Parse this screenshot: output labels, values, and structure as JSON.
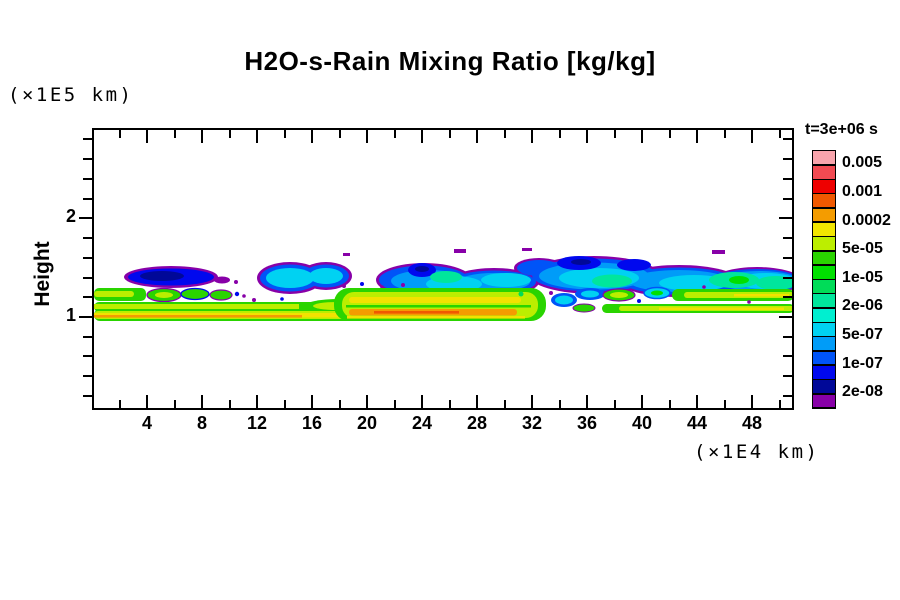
{
  "chart_data": {
    "type": "heatmap",
    "title": "H2O-s-Rain Mixing Ratio [kg/kg]",
    "time_annotation": "t=3e+06 s",
    "y_axis_label": "Height",
    "y_axis_unit": "(×1E5 km)",
    "x_axis_unit": "(×1E4 km)",
    "x_tick_labels": [
      4,
      8,
      12,
      16,
      20,
      24,
      28,
      32,
      36,
      40,
      44,
      48
    ],
    "x_minor_tick_step": 2,
    "x_range": [
      0.2,
      51
    ],
    "y_tick_labels": [
      2,
      1
    ],
    "y_minor_tick_step": 0.2,
    "y_range": [
      0.05,
      2.9
    ],
    "grid": false,
    "legend_position": "right-colorbar",
    "colorbar": {
      "n_cells": 18,
      "labels_top_to_bottom": [
        "0.005",
        "0.001",
        "0.0002",
        "5e-05",
        "1e-05",
        "2e-06",
        "5e-07",
        "1e-07",
        "2e-08"
      ],
      "implied_contour_levels": [
        "0.005",
        "0.002",
        "0.001",
        "0.0005",
        "0.0002",
        "0.0001",
        "5e-05",
        "2e-05",
        "1e-05",
        "5e-06",
        "2e-06",
        "1e-06",
        "5e-07",
        "2e-07",
        "1e-07",
        "5e-08",
        "2e-08"
      ],
      "colors_top_to_bottom": [
        "#F8A4AC",
        "#F24A52",
        "#EE0000",
        "#F05800",
        "#F49C00",
        "#F2E600",
        "#BCEE00",
        "#2AD400",
        "#00E000",
        "#00DC58",
        "#00E69C",
        "#00EFD0",
        "#00D2F2",
        "#009CF8",
        "#0054F8",
        "#0008EE",
        "#000898",
        "#8800A8"
      ]
    },
    "features": [
      {
        "name": "isolated upper clouds (west)",
        "height_x1e5km": [
          1.3,
          1.5
        ],
        "x_x1e4km": [
          2,
          19
        ],
        "magnitude_kg_kg": "dark-blue blob ~1e-07; twin cyan blobs ~5e-07 to 2e-06"
      },
      {
        "name": "upper cloud deck",
        "height_x1e5km": [
          1.3,
          1.6
        ],
        "x_x1e4km": [
          22,
          51
        ],
        "magnitude_kg_kg": "blue/cyan 1e-07 to 2e-06 with green-teal cores ~5e-06 and purple 2e-08 fringe"
      },
      {
        "name": "lower rain band west",
        "height_x1e5km": [
          0.95,
          1.25
        ],
        "x_x1e4km": [
          0,
          22
        ],
        "magnitude_kg_kg": "green 1e-05 to 5e-05 with yellow/orange streak up to 0.0002"
      },
      {
        "name": "lower rain band central (most intense)",
        "height_x1e5km": [
          0.95,
          1.2
        ],
        "x_x1e4km": [
          17,
          33
        ],
        "magnitude_kg_kg": "chartreuse/yellow with orange core ~0.0002 to 0.0005"
      },
      {
        "name": "lower rain band east",
        "height_x1e5km": [
          1.0,
          1.2
        ],
        "x_x1e4km": [
          34,
          51
        ],
        "magnitude_kg_kg": "green/chartreuse 2e-06 to 5e-05 with cyan/blue patches"
      }
    ]
  }
}
